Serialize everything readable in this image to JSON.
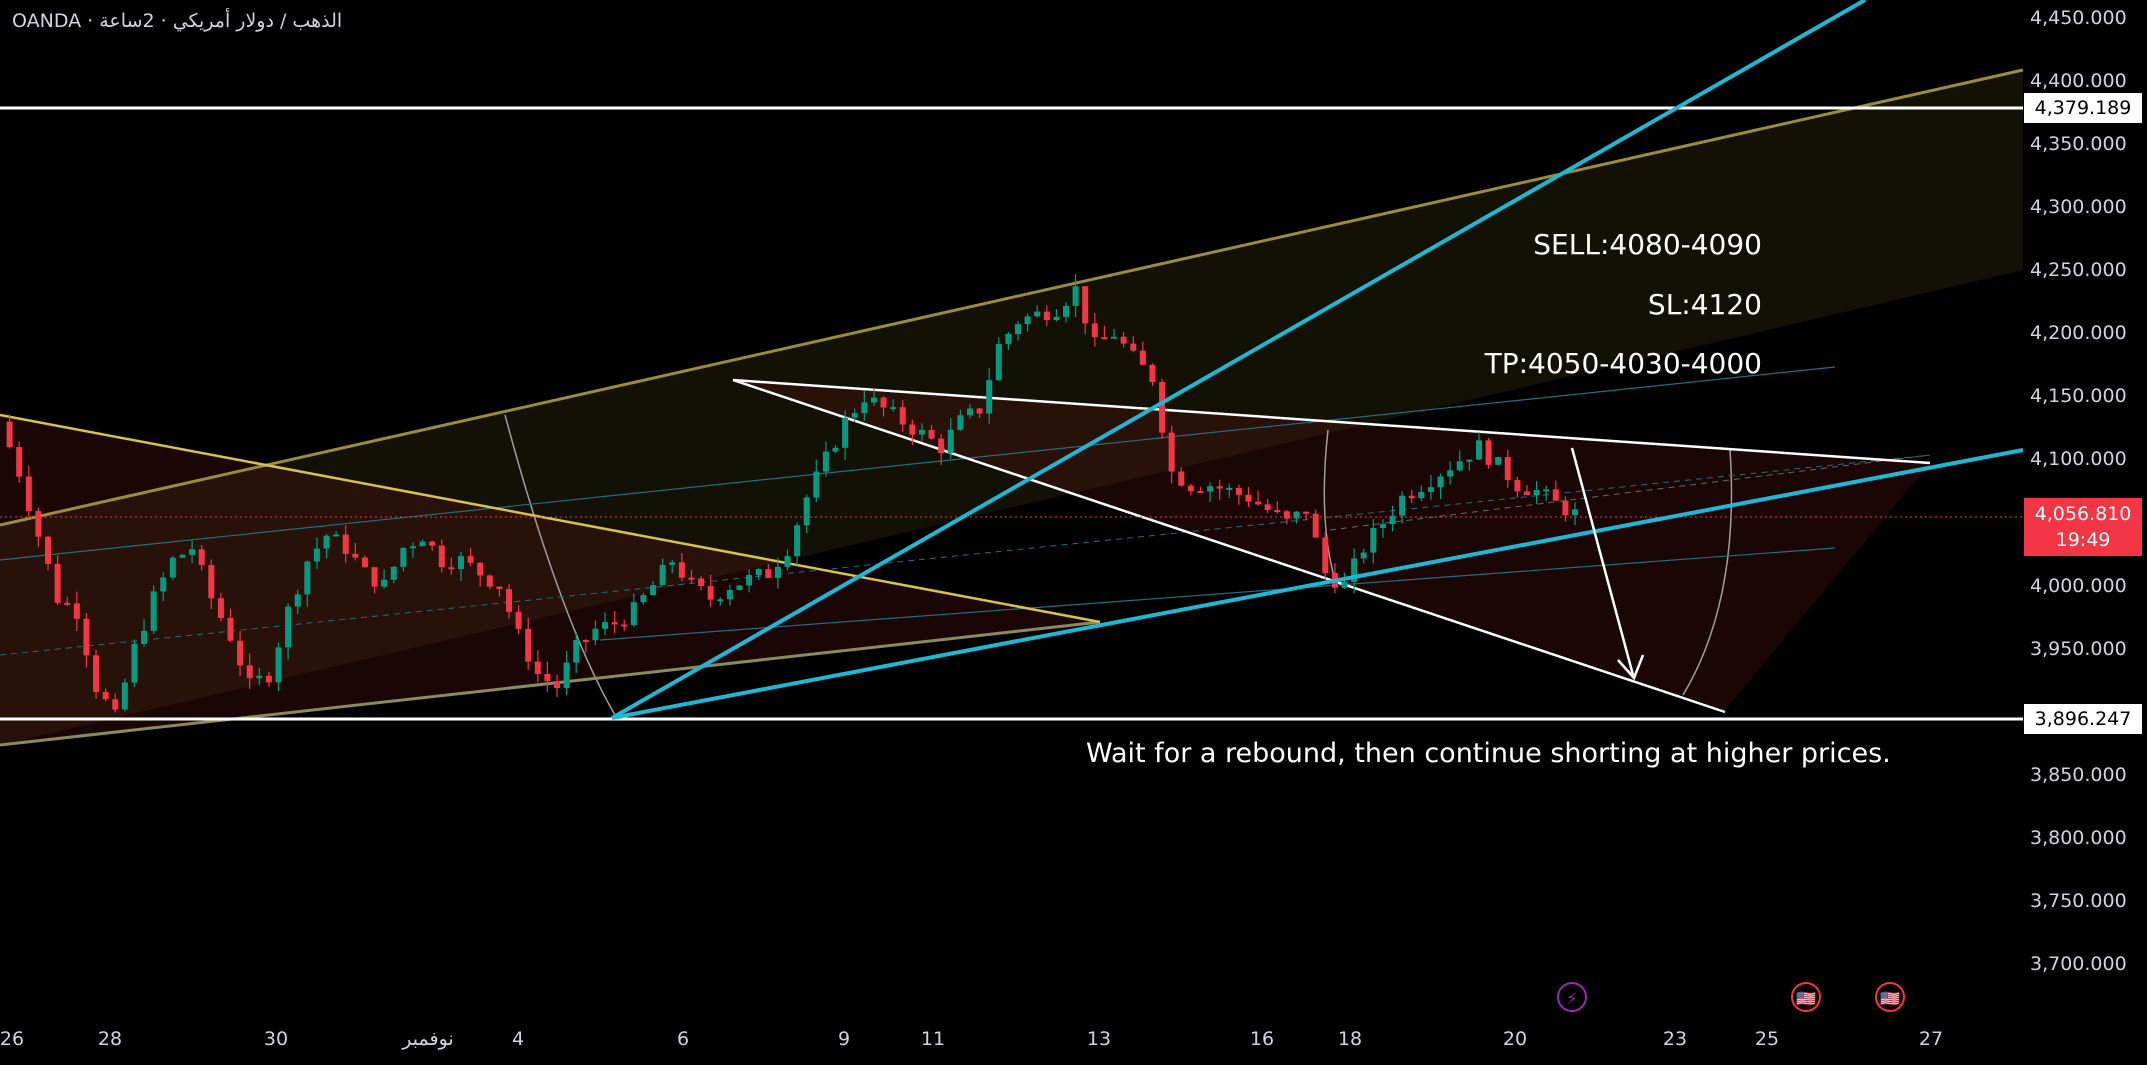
{
  "header": {
    "symbol_text": "OANDA · الذهب / دولار أمريكي · 2ساعة"
  },
  "annotations": {
    "sell": "SELL:4080-4090",
    "sl": "SL:4120",
    "tp": "TP:4050-4030-4000",
    "note": "Wait for a rebound, then continue shorting at higher prices."
  },
  "price_scale": {
    "current_price": "4,056.810",
    "countdown": "19:49",
    "level_high": "4,379.189",
    "level_low": "3,896.247"
  },
  "events": [
    {
      "icon": "lightning-icon",
      "glyph": "⚡",
      "color": "#9c27b0"
    },
    {
      "icon": "us-flag-icon",
      "glyph": "🇺🇸",
      "color": "#f23645"
    },
    {
      "icon": "us-flag-icon",
      "glyph": "🇺🇸",
      "color": "#f23645"
    }
  ],
  "colors": {
    "background": "#000000",
    "up_candle": "#089981",
    "down_candle": "#f23645",
    "cyan_trend": "#1fb8d4",
    "olive_channel": "#9a8c3a",
    "yellow_line": "#d9c24a",
    "white_line": "#ffffff"
  },
  "chart_data": {
    "type": "candlestick",
    "symbol": "XAUUSD",
    "timeframe": "2h",
    "y_ticks": [
      "4,450.000",
      "4,400.000",
      "4,350.000",
      "4,300.000",
      "4,250.000",
      "4,200.000",
      "4,150.000",
      "4,100.000",
      "4,000.000",
      "3,950.000",
      "3,850.000",
      "3,800.000",
      "3,750.000",
      "3,700.000"
    ],
    "y_tick_values": [
      4450,
      4400,
      4350,
      4300,
      4250,
      4200,
      4150,
      4100,
      4000,
      3950,
      3850,
      3800,
      3750,
      3700
    ],
    "ylim": [
      3680,
      4470
    ],
    "x_ticks": [
      "26",
      "28",
      "30",
      "نوفمبر",
      "4",
      "6",
      "9",
      "11",
      "13",
      "16",
      "18",
      "20",
      "23",
      "25",
      "27"
    ],
    "horizontal_levels": [
      4379.189,
      3896.247
    ],
    "current_price": 4056.81,
    "price_path": [
      4130,
      4090,
      4040,
      3990,
      3980,
      3920,
      3895,
      3950,
      3990,
      4020,
      4030,
      3990,
      3960,
      3920,
      3930,
      3980,
      4020,
      4040,
      4030,
      4010,
      4000,
      4030,
      4040,
      4020,
      4020,
      4010,
      4000,
      3960,
      3930,
      3920,
      3950,
      3965,
      3970,
      3980,
      4000,
      4020,
      4000,
      3990,
      4000,
      4005,
      4010,
      4030,
      4070,
      4100,
      4130,
      4150,
      4140,
      4130,
      4120,
      4110,
      4130,
      4140,
      4190,
      4210,
      4215,
      4220,
      4235,
      4190,
      4200,
      4180,
      4165,
      4090,
      4080,
      4080,
      4075,
      4070,
      4060,
      4050,
      4060,
      4010,
      4000,
      4030,
      4050,
      4070,
      4080,
      4090,
      4100,
      4110,
      4095,
      4080,
      4075,
      4065,
      4056.81
    ]
  }
}
